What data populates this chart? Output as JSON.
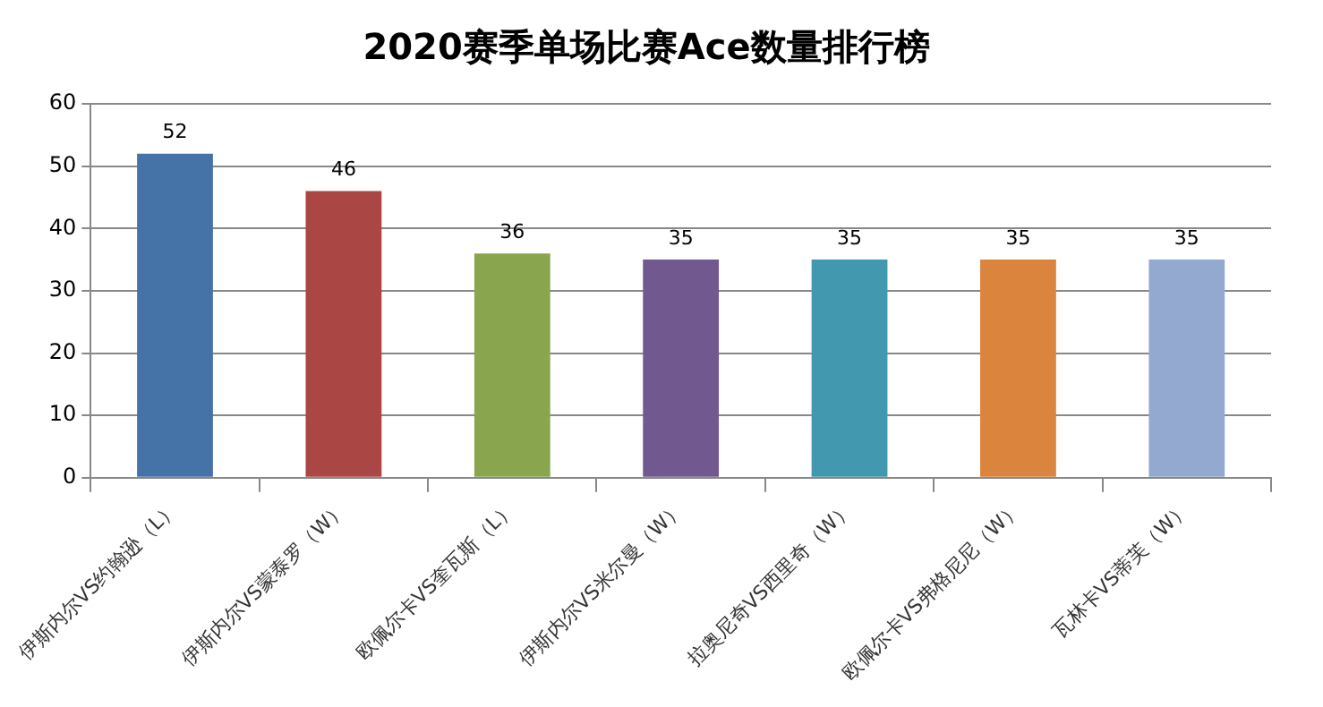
{
  "chart_data": {
    "type": "bar",
    "title": "2020赛季单场比赛Ace数量排行榜",
    "categories": [
      "伊斯内尔VS约翰逊（L）",
      "伊斯内尔VS蒙泰罗（W）",
      "欧佩尔卡VS奎瓦斯（L）",
      "伊斯内尔VS米尔曼（W）",
      "拉奥尼奇VS西里奇（W）",
      "欧佩尔卡VS弗格尼尼（W）",
      "瓦林卡VS蒂芙（W）"
    ],
    "values": [
      52,
      46,
      36,
      35,
      35,
      35,
      35
    ],
    "colors": [
      "#4572a7",
      "#aa4643",
      "#89a54e",
      "#71588f",
      "#4198af",
      "#db843d",
      "#93a9cf"
    ],
    "ylim": [
      0,
      60
    ],
    "yticks": [
      0,
      10,
      20,
      30,
      40,
      50,
      60
    ],
    "grid": "y",
    "data_labels": true
  }
}
